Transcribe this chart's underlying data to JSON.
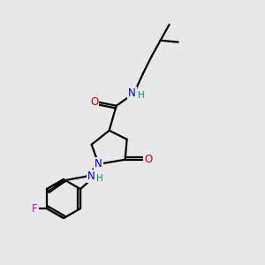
{
  "bg_color": "#e8e8e8",
  "bond_color": "#000000",
  "atom_colors": {
    "N": "#0000cc",
    "O": "#cc0000",
    "F": "#cc00cc",
    "H": "#008888",
    "C": "#000000"
  },
  "figsize": [
    3.0,
    3.0
  ],
  "dpi": 100,
  "lw": 1.6,
  "fontsize": 8.5
}
